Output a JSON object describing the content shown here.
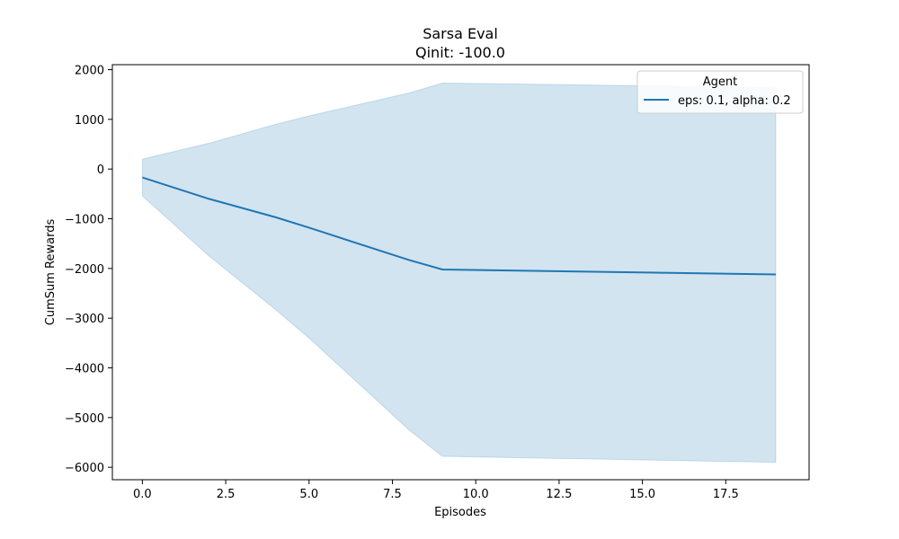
{
  "chart_data": {
    "type": "line",
    "title": "Sarsa Eval",
    "subtitle": "Qinit: -100.0",
    "xlabel": "Episodes",
    "ylabel": "CumSum Rewards",
    "xlim": [
      -0.9,
      20.0
    ],
    "ylim": [
      -6250,
      2100
    ],
    "x_ticks": [
      0.0,
      2.5,
      5.0,
      7.5,
      10.0,
      12.5,
      15.0,
      17.5
    ],
    "x_tick_labels": [
      "0.0",
      "2.5",
      "5.0",
      "7.5",
      "10.0",
      "12.5",
      "15.0",
      "17.5"
    ],
    "y_ticks": [
      -6000,
      -5000,
      -4000,
      -3000,
      -2000,
      -1000,
      0,
      1000,
      2000
    ],
    "y_tick_labels": [
      "−6000",
      "−5000",
      "−4000",
      "−3000",
      "−2000",
      "−1000",
      "0",
      "1000",
      "2000"
    ],
    "grid": false,
    "legend": {
      "title": "Agent",
      "placement": "top-right"
    },
    "series": [
      {
        "name": "eps: 0.1, alpha: 0.2",
        "color": "#1f77b4",
        "x": [
          0,
          2,
          4,
          5,
          8,
          9,
          19
        ],
        "y": [
          -170,
          -600,
          -970,
          -1180,
          -1830,
          -2020,
          -2120
        ],
        "lower": [
          -540,
          -1750,
          -2830,
          -3400,
          -5250,
          -5780,
          -5900
        ],
        "upper": [
          200,
          520,
          900,
          1070,
          1530,
          1730,
          1640
        ]
      }
    ]
  }
}
